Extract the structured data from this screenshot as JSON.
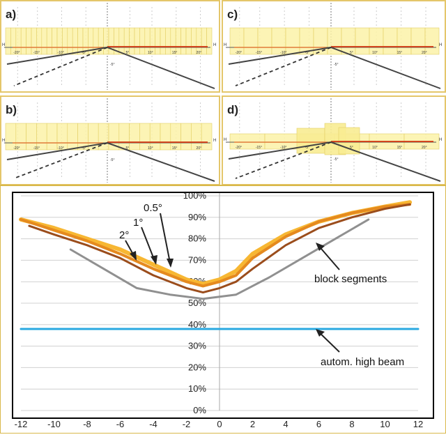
{
  "chart_data": [
    {
      "type": "diagram",
      "panel_label": "a)",
      "x_tick_labels": [
        "-20°",
        "-15°",
        "-10°",
        "-5°",
        "5°",
        "10°",
        "15°",
        "20°"
      ],
      "y_tick_labels": [
        "-5°"
      ],
      "h_label": "H",
      "segments": "many narrow columns"
    },
    {
      "type": "diagram",
      "panel_label": "b)",
      "x_tick_labels": [
        "-20°",
        "-15°",
        "-10°",
        "-5°",
        "5°",
        "10°",
        "15°",
        "20°"
      ],
      "y_tick_labels": [
        "-5°"
      ],
      "h_label": "H",
      "segments": "medium columns"
    },
    {
      "type": "diagram",
      "panel_label": "c)",
      "x_tick_labels": [
        "-20°",
        "-15°",
        "-10°",
        "-5°",
        "5°",
        "10°",
        "15°",
        "20°"
      ],
      "y_tick_labels": [
        "-5°"
      ],
      "h_label": "H",
      "segments": "wider columns"
    },
    {
      "type": "diagram",
      "panel_label": "d)",
      "x_tick_labels": [
        "-20°",
        "-15°",
        "-10°",
        "-5°",
        "5°",
        "10°",
        "15°",
        "20°"
      ],
      "y_tick_labels": [
        "-5°"
      ],
      "h_label": "H",
      "segments": "few wide blocks"
    },
    {
      "type": "line",
      "xlim": [
        -12,
        12
      ],
      "ylim": [
        0,
        100
      ],
      "x_ticks": [
        -12,
        -10,
        -8,
        -6,
        -4,
        -2,
        0,
        2,
        4,
        6,
        8,
        10,
        12
      ],
      "y_ticks": [
        "0%",
        "10%",
        "20%",
        "30%",
        "40%",
        "50%",
        "60%",
        "70%",
        "80%",
        "90%",
        "100%"
      ],
      "grid": true,
      "series": [
        {
          "name": "0.5°",
          "color": "#f7b733",
          "width": 6,
          "x": [
            -12,
            -10,
            -8,
            -6,
            -4,
            -2,
            -1,
            0,
            1,
            2,
            4,
            6,
            8,
            10,
            11.5
          ],
          "y": [
            89,
            85,
            80,
            75,
            68,
            61,
            59,
            61,
            65,
            73,
            82,
            88,
            92,
            95,
            97
          ]
        },
        {
          "name": "1°",
          "color": "#e58a1f",
          "width": 4,
          "x": [
            -12,
            -10,
            -8,
            -6,
            -4,
            -2,
            -1,
            0,
            1,
            2,
            4,
            6,
            8,
            10,
            11.5
          ],
          "y": [
            89,
            84,
            79,
            73,
            66,
            60,
            58,
            60,
            63,
            71,
            81,
            88,
            92,
            95,
            96
          ]
        },
        {
          "name": "2°",
          "color": "#9b4d1c",
          "width": 3,
          "x": [
            -11.5,
            -10,
            -8,
            -6,
            -4,
            -2,
            -1,
            0,
            1,
            2,
            4,
            6,
            8,
            10,
            11.5
          ],
          "y": [
            86,
            82,
            77,
            71,
            63,
            57,
            55,
            57,
            60,
            66,
            77,
            85,
            90,
            94,
            96
          ]
        },
        {
          "name": "block segments",
          "color": "#909090",
          "width": 3,
          "x": [
            -9,
            -7,
            -5,
            -3,
            -1,
            1,
            3,
            5,
            7,
            9
          ],
          "y": [
            75,
            66,
            57,
            54,
            52,
            54,
            62,
            71,
            80,
            89
          ]
        },
        {
          "name": "autom. high beam",
          "color": "#29a8e0",
          "width": 3,
          "x": [
            -12,
            12
          ],
          "y": [
            38,
            38
          ]
        }
      ],
      "annotations": [
        "0.5°",
        "1°",
        "2°",
        "block segments",
        "autom. high beam"
      ]
    }
  ]
}
